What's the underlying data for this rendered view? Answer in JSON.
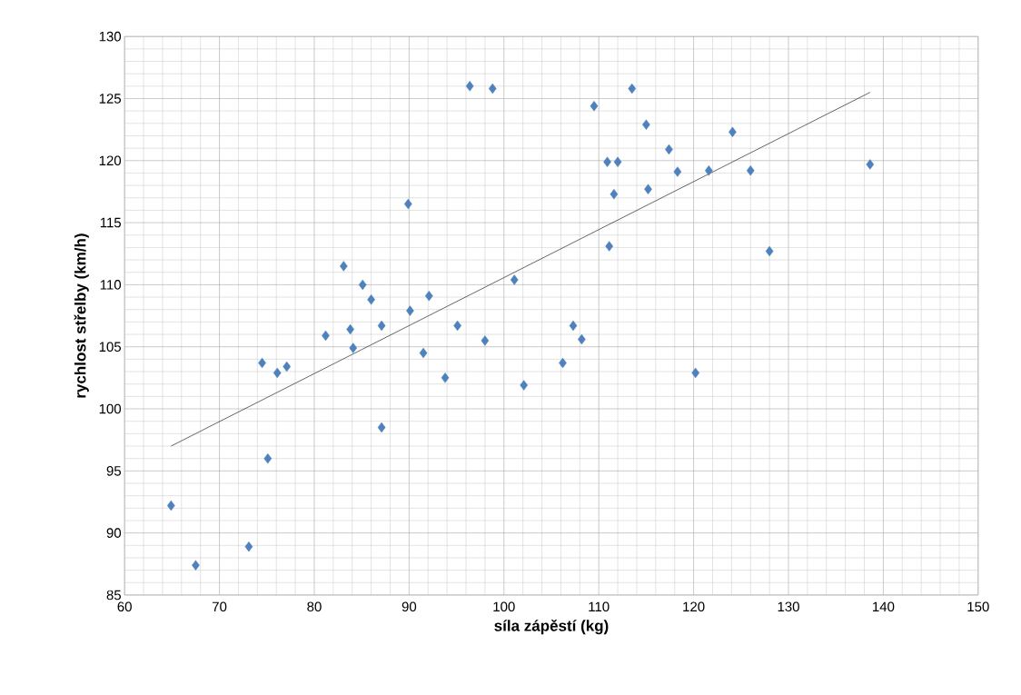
{
  "chart_data": {
    "type": "scatter",
    "xlabel": "síla zápěstí (kg)",
    "ylabel": "rychlost střelby (km/h)",
    "xlim": [
      60,
      150
    ],
    "xticks": [
      60,
      70,
      80,
      90,
      100,
      110,
      120,
      130,
      140,
      150
    ],
    "ylim": [
      85,
      130
    ],
    "yticks": [
      85,
      90,
      95,
      100,
      105,
      110,
      115,
      120,
      125,
      130
    ],
    "grid": true,
    "series": [
      {
        "color": "#4f81bd",
        "marker": "diamond",
        "x": [
          64.9,
          67.5,
          73.1,
          74.5,
          75.1,
          76.1,
          77.1,
          81.2,
          83.1,
          83.8,
          84.1,
          85.1,
          86.0,
          87.1,
          87.1,
          89.9,
          90.1,
          91.5,
          92.1,
          93.8,
          95.1,
          96.4,
          98.0,
          98.8,
          101.1,
          102.1,
          106.2,
          107.3,
          108.2,
          109.5,
          113.5,
          110.9,
          112.0,
          111.1,
          111.6,
          115.0,
          115.2,
          117.4,
          118.3,
          120.2,
          121.6,
          124.1,
          126.0,
          128.0,
          138.6
        ],
        "values": [
          92.2,
          87.4,
          88.9,
          103.7,
          96.0,
          102.9,
          103.4,
          105.9,
          111.5,
          106.4,
          104.9,
          110.0,
          108.8,
          106.7,
          98.5,
          116.5,
          107.9,
          104.5,
          109.1,
          102.5,
          106.7,
          126.0,
          105.5,
          125.8,
          110.4,
          101.9,
          103.7,
          106.7,
          105.6,
          124.4,
          125.8,
          119.9,
          119.9,
          113.1,
          117.3,
          122.9,
          117.7,
          120.9,
          119.1,
          102.9,
          119.2,
          122.3,
          119.2,
          112.7,
          119.7
        ]
      },
      {
        "type": "line",
        "marker": "none",
        "color": "#404040",
        "x": [
          64.9,
          138.6
        ],
        "values": [
          97.0,
          125.5
        ]
      }
    ]
  }
}
